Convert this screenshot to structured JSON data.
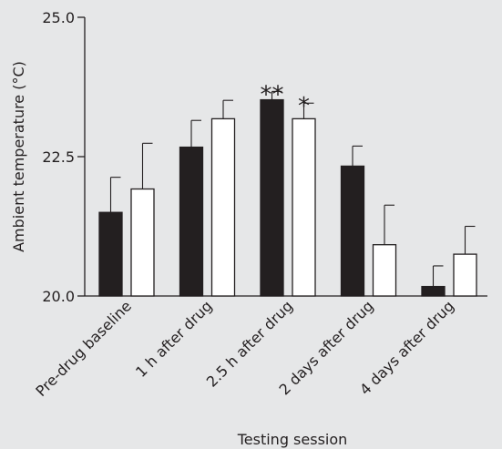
{
  "chart_data": {
    "type": "bar",
    "xlabel": "Testing session",
    "ylabel": "Ambient temperature (°C)",
    "ylim": [
      20.0,
      25.0
    ],
    "yticks": [
      "20.0",
      "22.5",
      "25.0"
    ],
    "categories": [
      "Pre-drug baseline",
      "1 h after drug",
      "2.5 h after drug",
      "2 days after drug",
      "4 days after drug"
    ],
    "series": [
      {
        "fill": "#231f20",
        "values": [
          21.5,
          22.67,
          23.52,
          22.33,
          20.17
        ],
        "errors": [
          0.63,
          0.48,
          0.15,
          0.36,
          0.37
        ],
        "annotations": [
          "",
          "",
          "**",
          "",
          ""
        ]
      },
      {
        "fill": "#ffffff",
        "values": [
          21.92,
          23.18,
          23.18,
          20.92,
          20.75
        ],
        "errors": [
          0.82,
          0.33,
          0.28,
          0.71,
          0.5
        ],
        "annotations": [
          "",
          "",
          "*",
          "",
          ""
        ]
      }
    ]
  }
}
